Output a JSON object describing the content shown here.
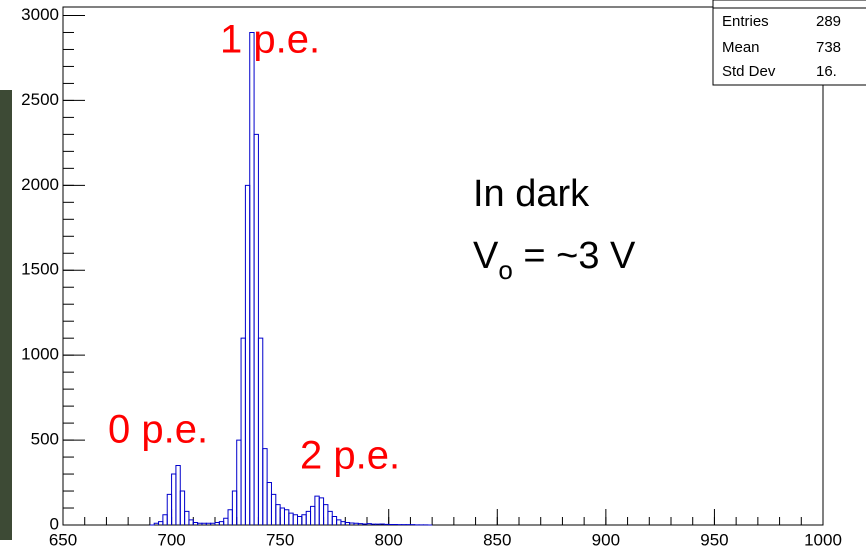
{
  "chart_data": {
    "type": "histogram",
    "bins": [
      690,
      692,
      694,
      696,
      698,
      700,
      702,
      704,
      706,
      708,
      710,
      712,
      714,
      716,
      718,
      720,
      722,
      724,
      726,
      728,
      730,
      732,
      734,
      736,
      738,
      740,
      742,
      744,
      746,
      748,
      750,
      752,
      754,
      756,
      758,
      760,
      762,
      764,
      766,
      768,
      770,
      772,
      774,
      776,
      778,
      780,
      782,
      784,
      786,
      788,
      790,
      792,
      794,
      796,
      798,
      800,
      802,
      804,
      806,
      808,
      810,
      812,
      814,
      816,
      818,
      820
    ],
    "counts": [
      0,
      10,
      20,
      60,
      180,
      300,
      350,
      200,
      80,
      30,
      15,
      10,
      10,
      10,
      10,
      15,
      20,
      40,
      90,
      200,
      500,
      1100,
      2000,
      2900,
      2300,
      1100,
      450,
      250,
      180,
      120,
      100,
      90,
      70,
      60,
      50,
      60,
      80,
      110,
      170,
      160,
      120,
      80,
      50,
      30,
      20,
      15,
      12,
      10,
      8,
      6,
      8,
      5,
      5,
      6,
      4,
      3,
      3,
      2,
      2,
      2,
      2,
      1,
      1,
      1,
      0
    ],
    "color": "#0000cc",
    "xlim": [
      650,
      1000
    ],
    "xticks": [
      650,
      700,
      750,
      800,
      850,
      900,
      950,
      1000
    ],
    "ylim": [
      0,
      3050
    ],
    "yticks": [
      0,
      500,
      1000,
      1500,
      2000,
      2500,
      3000
    ],
    "stats": [
      [
        "Entries",
        "289"
      ],
      [
        "Mean",
        "738"
      ],
      [
        "Std Dev",
        "16."
      ]
    ],
    "annotations": {
      "peak1": "1 p.e.",
      "peak0": "0 p.e.",
      "peak2": "2 p.e.",
      "condition": "In dark",
      "voltage": [
        "V",
        "o",
        " = ~3 V"
      ]
    }
  }
}
